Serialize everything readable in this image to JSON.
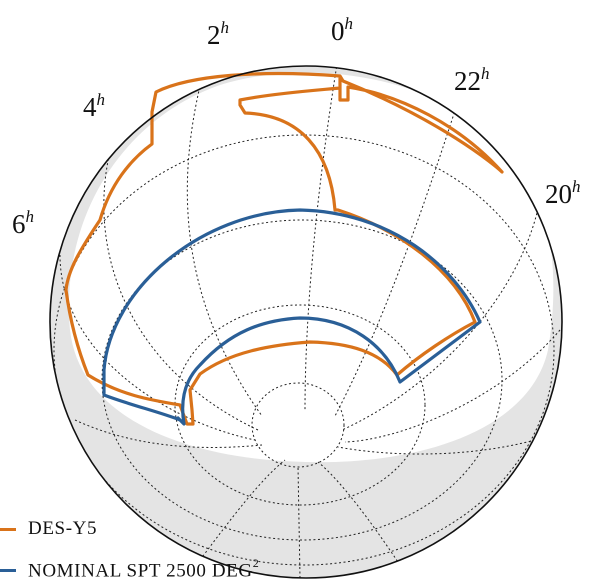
{
  "ra_labels": {
    "h0": "0",
    "h2": "2",
    "h4": "4",
    "h6": "6",
    "h20": "20",
    "h22": "22",
    "unit": "h"
  },
  "legend": {
    "des": {
      "label": "DES-Y5",
      "color": "#d9731a"
    },
    "spt": {
      "label": "NOMINAL SPT 2500 DEG",
      "suffix": "2",
      "color": "#2a5f97"
    }
  },
  "colors": {
    "sphere_shade": "#e4e4e4",
    "grid": "#222222",
    "outline": "#111111"
  }
}
